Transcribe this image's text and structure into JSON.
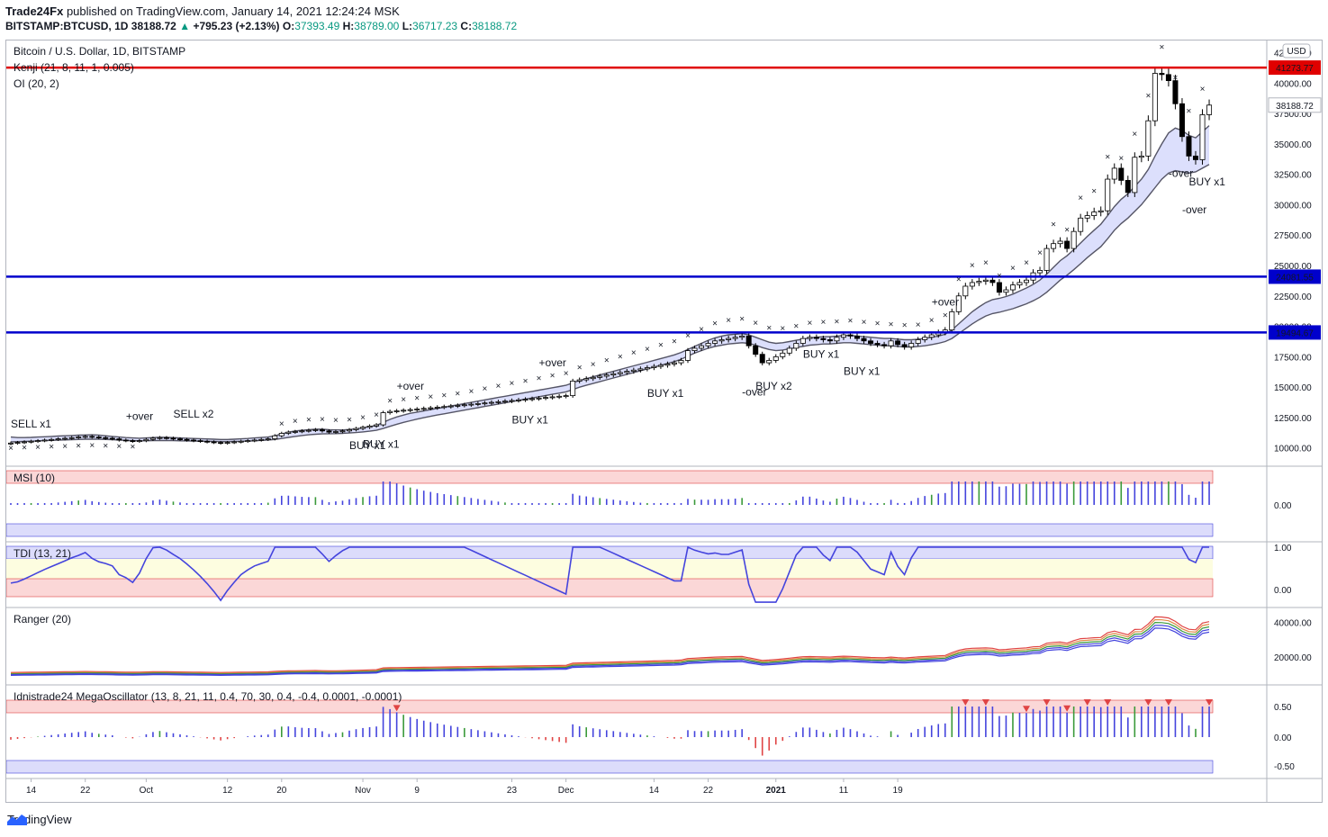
{
  "header": {
    "publisher": "Trade24Fx",
    "published_text": "published on TradingView.com, January 14, 2021 12:24:24 MSK",
    "symbol": "BITSTAMP:BTCUSD, 1D",
    "last": "38188.72",
    "change": "+795.23 (+2.13%)",
    "change_arrow": "▲",
    "o_label": "O:",
    "o": "37393.49",
    "h_label": "H:",
    "h": "38789.00",
    "l_label": "L:",
    "l": "36717.23",
    "c_label": "C:",
    "c": "38188.72"
  },
  "footer": {
    "brand": "TradingView"
  },
  "colors": {
    "up_candle": "#ffffff",
    "down_candle": "#000000",
    "red_line": "#e00000",
    "blue_line": "#0000cc",
    "band_fill": "#d6d9fb",
    "band_stroke": "#555566"
  },
  "chart_data": {
    "type": "candlestick",
    "price_panel": {
      "title": "Bitcoin / U.S. Dollar, 1D, BITSTAMP",
      "indicator_1": "Kenji (21, 8, 11, 1, 0.005)",
      "indicator_2": "OI (20, 2)",
      "currency": "USD",
      "ylim": [
        8500,
        43500
      ],
      "y_ticks": [
        "42500.00",
        "40000.00",
        "37500.00",
        "35000.00",
        "32500.00",
        "30000.00",
        "27500.00",
        "25000.00",
        "22500.00",
        "20000.00",
        "17500.00",
        "15000.00",
        "12500.00",
        "10000.00"
      ],
      "last_price_label": "38188.72",
      "horizontal_levels": [
        {
          "value": 41273.77,
          "label": "41273.77",
          "color": "red"
        },
        {
          "value": 24081.55,
          "label": "24081.55",
          "color": "blue"
        },
        {
          "value": 19494.67,
          "label": "19494.67",
          "color": "blue"
        }
      ],
      "closes": [
        10400,
        10450,
        10500,
        10550,
        10600,
        10650,
        10700,
        10750,
        10800,
        10850,
        10900,
        10950,
        10900,
        10850,
        10800,
        10750,
        10650,
        10600,
        10550,
        10600,
        10700,
        10800,
        10850,
        10800,
        10750,
        10700,
        10650,
        10600,
        10550,
        10500,
        10450,
        10400,
        10450,
        10500,
        10550,
        10600,
        10650,
        10700,
        10750,
        11000,
        11200,
        11300,
        11350,
        11400,
        11450,
        11500,
        11400,
        11300,
        11350,
        11400,
        11500,
        11600,
        11700,
        11800,
        11900,
        12900,
        13000,
        13050,
        13100,
        13150,
        13200,
        13250,
        13300,
        13350,
        13400,
        13450,
        13500,
        13550,
        13600,
        13650,
        13700,
        13750,
        13800,
        13850,
        13900,
        13950,
        14000,
        14050,
        14100,
        14150,
        14200,
        14250,
        14300,
        15500,
        15600,
        15700,
        15800,
        15900,
        16000,
        16100,
        16200,
        16300,
        16400,
        16500,
        16600,
        16700,
        16800,
        16900,
        17000,
        17200,
        18000,
        18200,
        18400,
        18600,
        18800,
        18900,
        19000,
        19100,
        19200,
        18400,
        17700,
        17000,
        17200,
        17500,
        17800,
        18200,
        18600,
        19000,
        19100,
        19000,
        18900,
        18800,
        19100,
        19300,
        19200,
        19000,
        18800,
        18600,
        18500,
        18400,
        18800,
        18500,
        18300,
        18600,
        18900,
        19100,
        19300,
        19500,
        19700,
        21200,
        22500,
        23300,
        23600,
        23700,
        23800,
        23600,
        22800,
        23000,
        23400,
        23600,
        23800,
        24400,
        24600,
        26400,
        26800,
        27000,
        26400,
        27800,
        28900,
        29100,
        29400,
        29500,
        32100,
        33000,
        32000,
        31000,
        33900,
        34000,
        36900,
        40800,
        40700,
        40200,
        38300,
        35600,
        34000,
        33700,
        37400,
        38189
      ],
      "band_upper": [
        10900,
        10850,
        10850,
        10870,
        10900,
        10920,
        10950,
        10980,
        11000,
        11020,
        11050,
        11070,
        11080,
        11060,
        11000,
        10950,
        10900,
        10850,
        10820,
        10800,
        10820,
        10850,
        10880,
        10870,
        10850,
        10820,
        10800,
        10780,
        10760,
        10740,
        10720,
        10700,
        10700,
        10720,
        10750,
        10780,
        10820,
        10860,
        10900,
        11000,
        11150,
        11300,
        11400,
        11450,
        11500,
        11550,
        11550,
        11500,
        11480,
        11480,
        11520,
        11580,
        11660,
        11750,
        11850,
        12100,
        12350,
        12550,
        12700,
        12850,
        12950,
        13050,
        13150,
        13250,
        13350,
        13450,
        13550,
        13650,
        13750,
        13850,
        13950,
        14050,
        14150,
        14250,
        14350,
        14450,
        14550,
        14650,
        14750,
        14850,
        14950,
        15050,
        15150,
        15350,
        15550,
        15700,
        15850,
        16000,
        16150,
        16300,
        16450,
        16600,
        16750,
        16900,
        17050,
        17200,
        17350,
        17500,
        17650,
        17850,
        18100,
        18350,
        18600,
        18850,
        19050,
        19200,
        19300,
        19350,
        19400,
        19300,
        19100,
        18900,
        18700,
        18600,
        18650,
        18750,
        18850,
        18950,
        19050,
        19100,
        19150,
        19150,
        19200,
        19250,
        19250,
        19200,
        19150,
        19100,
        19050,
        19000,
        19000,
        18950,
        18900,
        18900,
        18950,
        19000,
        19100,
        19200,
        19350,
        19700,
        20200,
        20700,
        21200,
        21600,
        21950,
        22200,
        22300,
        22450,
        22650,
        22900,
        23150,
        23450,
        23800,
        24300,
        24850,
        25400,
        25800,
        26300,
        26850,
        27400,
        27900,
        28400,
        29100,
        29850,
        30450,
        30900,
        31500,
        32100,
        32900,
        34000,
        35000,
        35900,
        36300,
        36100,
        35700,
        35500,
        36000,
        36500
      ],
      "band_lower": [
        10500,
        10520,
        10540,
        10560,
        10580,
        10600,
        10620,
        10640,
        10660,
        10680,
        10700,
        10720,
        10730,
        10720,
        10700,
        10680,
        10650,
        10620,
        10600,
        10590,
        10590,
        10600,
        10610,
        10610,
        10600,
        10590,
        10580,
        10570,
        10560,
        10550,
        10540,
        10530,
        10530,
        10540,
        10550,
        10570,
        10590,
        10620,
        10650,
        10700,
        10780,
        10870,
        10950,
        11020,
        11080,
        11130,
        11160,
        11170,
        11180,
        11200,
        11230,
        11270,
        11320,
        11380,
        11450,
        11600,
        11780,
        11950,
        12100,
        12240,
        12370,
        12490,
        12600,
        12710,
        12810,
        12910,
        13010,
        13110,
        13210,
        13310,
        13410,
        13510,
        13610,
        13710,
        13810,
        13910,
        14010,
        14110,
        14210,
        14310,
        14410,
        14510,
        14610,
        14800,
        15000,
        15150,
        15300,
        15450,
        15600,
        15750,
        15900,
        16050,
        16200,
        16350,
        16500,
        16650,
        16800,
        16950,
        17100,
        17300,
        17550,
        17800,
        18000,
        18200,
        18350,
        18450,
        18550,
        18600,
        18650,
        18600,
        18450,
        18250,
        18100,
        18000,
        18050,
        18150,
        18250,
        18350,
        18450,
        18500,
        18550,
        18550,
        18600,
        18650,
        18650,
        18600,
        18550,
        18500,
        18450,
        18400,
        18400,
        18350,
        18300,
        18300,
        18350,
        18400,
        18500,
        18600,
        18750,
        19000,
        19400,
        19800,
        20200,
        20550,
        20850,
        21050,
        21150,
        21300,
        21450,
        21650,
        21850,
        22100,
        22400,
        22800,
        23300,
        23800,
        24200,
        24650,
        25150,
        25650,
        26100,
        26550,
        27200,
        27900,
        28450,
        28900,
        29450,
        30000,
        30700,
        31400,
        32100,
        32600,
        32800,
        32700,
        32600,
        32700,
        33000,
        33300
      ],
      "annotations": [
        "SELL x1",
        "+over",
        "SELL x2",
        "BUY x1",
        "BUY x1",
        "+over",
        "BUY x1",
        "+over",
        "BUY x1",
        "-over",
        "BUY x2",
        "BUY x1",
        "BUY x1",
        "+over",
        "-over",
        "-over",
        "BUY x1"
      ]
    },
    "msi_panel": {
      "title": "MSI (10)",
      "y_ticks": [
        "0.00"
      ]
    },
    "tdi_panel": {
      "title": "TDI (13, 21)",
      "y_ticks": [
        "1.00",
        "0.00"
      ]
    },
    "ranger_panel": {
      "title": "Ranger (20)",
      "y_ticks": [
        "40000.00",
        "20000.00"
      ]
    },
    "mega_panel": {
      "title": "Idnistrade24 MegaOscillator (13, 8, 21, 11, 0.4, 70, 30, 0.4, -0.4, 0.0001, -0.0001)",
      "y_ticks": [
        "0.50",
        "0.00",
        "-0.50"
      ]
    },
    "x_ticks": [
      {
        "label": "14",
        "i": 3
      },
      {
        "label": "22",
        "i": 11
      },
      {
        "label": "Oct",
        "i": 20
      },
      {
        "label": "12",
        "i": 32
      },
      {
        "label": "20",
        "i": 40
      },
      {
        "label": "Nov",
        "i": 52
      },
      {
        "label": "9",
        "i": 60
      },
      {
        "label": "23",
        "i": 74
      },
      {
        "label": "Dec",
        "i": 82
      },
      {
        "label": "14",
        "i": 95
      },
      {
        "label": "22",
        "i": 103
      },
      {
        "label": "2021",
        "i": 113
      },
      {
        "label": "11",
        "i": 123
      },
      {
        "label": "19",
        "i": 131
      }
    ]
  }
}
